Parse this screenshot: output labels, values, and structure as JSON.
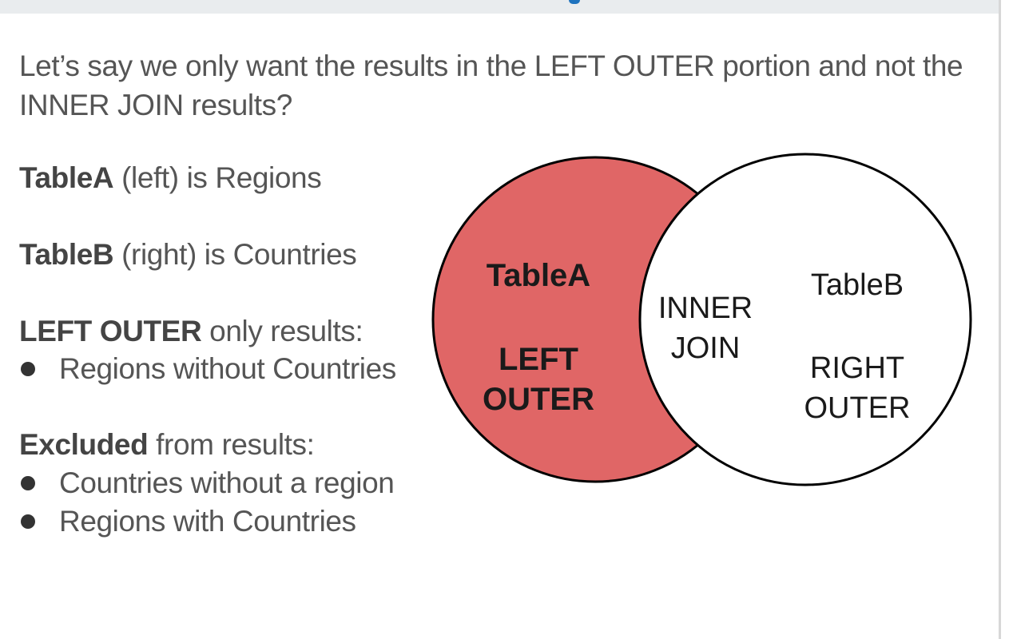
{
  "intro": "Let’s say we only want the results in the LEFT OUTER portion and not the INNER JOIN results?",
  "tableA_line": {
    "bold": "TableA",
    "rest": " (left) is Regions"
  },
  "tableB_line": {
    "bold": "TableB",
    "rest": " (right) is Countries"
  },
  "left_outer_heading": {
    "bold": "LEFT OUTER",
    "rest": " only results:"
  },
  "left_outer_items": [
    "Regions without Countries"
  ],
  "excluded_heading": {
    "bold": "Excluded",
    "rest": " from results:"
  },
  "excluded_items": [
    "Countries without a region",
    "Regions with Countries"
  ],
  "venn": {
    "left_label": "TableA",
    "left_region": [
      "LEFT",
      "OUTER"
    ],
    "inner_region": [
      "INNER",
      "JOIN"
    ],
    "right_label": "TableB",
    "right_region": [
      "RIGHT",
      "OUTER"
    ],
    "highlight_color": "#e06666",
    "outline_color": "#000000",
    "highlighted_region": "LEFT OUTER"
  }
}
